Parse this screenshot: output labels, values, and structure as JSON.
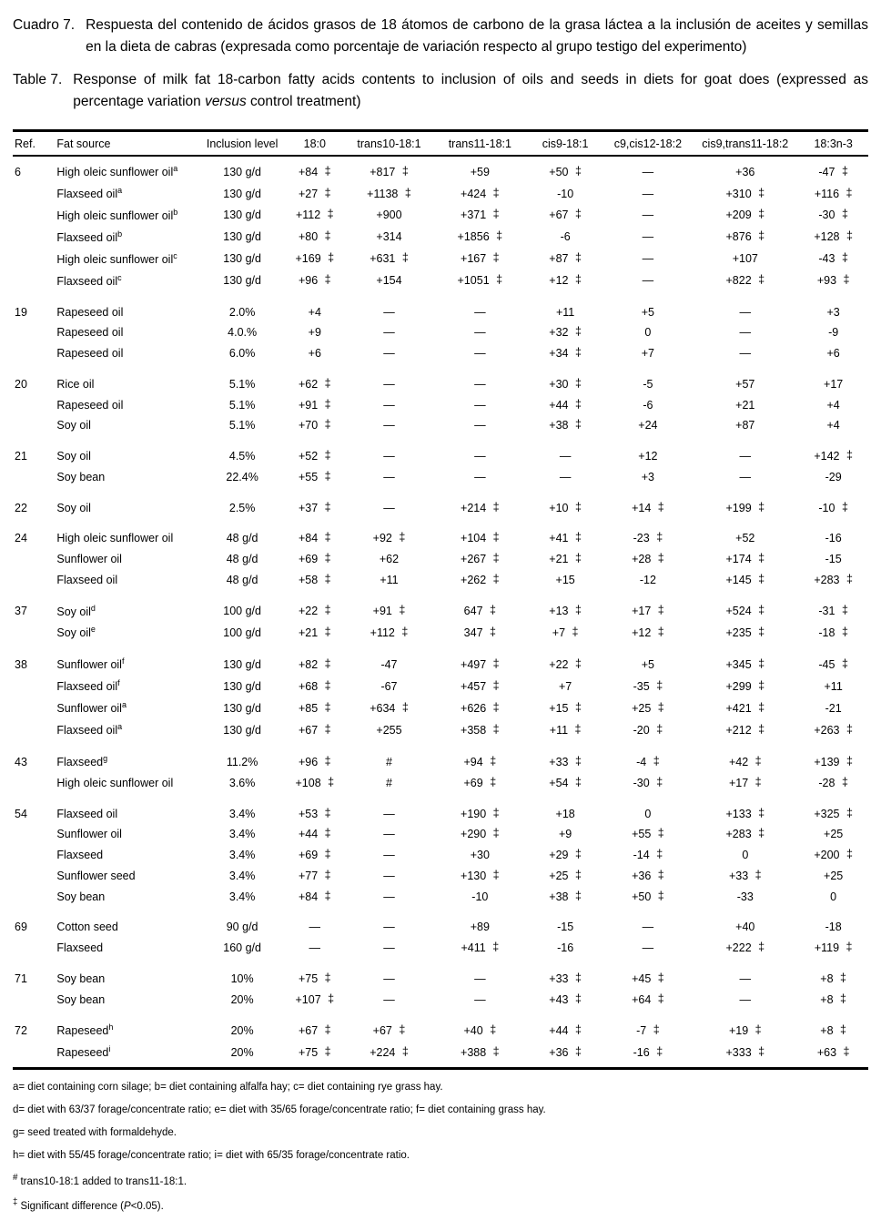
{
  "theme": {
    "page_bg": "#ffffff",
    "text": "#000000",
    "rule": "#000000"
  },
  "caption_es": {
    "label": "Cuadro 7.",
    "text": "Respuesta del contenido de ácidos grasos de 18 átomos de carbono de la grasa láctea a la inclusión de aceites y semillas en la dieta de cabras (expresada como porcentaje de variación respecto al grupo testigo del experimento)"
  },
  "caption_en": {
    "label": "Table 7.",
    "text_before": "Response of milk fat 18-carbon fatty acids contents to inclusion of oils and seeds in diets for goat does (expressed as percentage variation ",
    "italic_word": "versus",
    "text_after": " control treatment)"
  },
  "table": {
    "columns": [
      "Ref.",
      "Fat source",
      "Inclusion level",
      "18:0",
      "trans10-18:1",
      "trans11-18:1",
      "cis9-18:1",
      "c9,cis12-18:2",
      "cis9,trans11-18:2",
      "18:3n-3"
    ],
    "groups": [
      {
        "ref": "6",
        "rows": [
          {
            "source": "High oleic sunflower oil",
            "sup": "a",
            "level": "130 g/d",
            "values": [
              "+84 ‡",
              "+817 ‡",
              "+59",
              "+50 ‡",
              "—",
              "+36",
              "-47 ‡"
            ]
          },
          {
            "source": "Flaxseed oil",
            "sup": "a",
            "level": "130 g/d",
            "values": [
              "+27 ‡",
              "+1138 ‡",
              "+424 ‡",
              "-10",
              "—",
              "+310 ‡",
              "+116 ‡"
            ]
          },
          {
            "source": "High oleic sunflower oil",
            "sup": "b",
            "level": "130 g/d",
            "values": [
              "+112 ‡",
              "+900",
              "+371 ‡",
              "+67 ‡",
              "—",
              "+209 ‡",
              "-30 ‡"
            ]
          },
          {
            "source": "Flaxseed oil",
            "sup": "b",
            "level": "130 g/d",
            "values": [
              "+80 ‡",
              "+314",
              "+1856 ‡",
              "-6",
              "—",
              "+876 ‡",
              "+128 ‡"
            ]
          },
          {
            "source": "High oleic sunflower oil",
            "sup": "c",
            "level": "130 g/d",
            "values": [
              "+169 ‡",
              "+631 ‡",
              "+167 ‡",
              "+87 ‡",
              "—",
              "+107",
              "-43 ‡"
            ]
          },
          {
            "source": "Flaxseed oil",
            "sup": "c",
            "level": "130 g/d",
            "values": [
              "+96 ‡",
              "+154",
              "+1051 ‡",
              "+12 ‡",
              "—",
              "+822 ‡",
              "+93 ‡"
            ]
          }
        ]
      },
      {
        "ref": "19",
        "rows": [
          {
            "source": "Rapeseed oil",
            "level": "2.0%",
            "values": [
              "+4",
              "—",
              "—",
              "+11",
              "+5",
              "—",
              "+3"
            ]
          },
          {
            "source": "Rapeseed oil",
            "level": "4.0.%",
            "values": [
              "+9",
              "—",
              "—",
              "+32 ‡",
              "0",
              "—",
              "-9"
            ]
          },
          {
            "source": "Rapeseed oil",
            "level": "6.0%",
            "values": [
              "+6",
              "—",
              "—",
              "+34 ‡",
              "+7",
              "—",
              "+6"
            ]
          }
        ]
      },
      {
        "ref": "20",
        "rows": [
          {
            "source": "Rice oil",
            "level": "5.1%",
            "values": [
              "+62 ‡",
              "—",
              "—",
              "+30 ‡",
              "-5",
              "+57",
              "+17"
            ]
          },
          {
            "source": "Rapeseed oil",
            "level": "5.1%",
            "values": [
              "+91 ‡",
              "—",
              "—",
              "+44 ‡",
              "-6",
              "+21",
              "+4"
            ]
          },
          {
            "source": "Soy oil",
            "level": "5.1%",
            "values": [
              "+70 ‡",
              "—",
              "—",
              "+38 ‡",
              "+24",
              "+87",
              "+4"
            ]
          }
        ]
      },
      {
        "ref": "21",
        "rows": [
          {
            "source": "Soy oil",
            "level": "4.5%",
            "values": [
              "+52 ‡",
              "—",
              "—",
              "—",
              "+12",
              "—",
              "+142 ‡"
            ]
          },
          {
            "source": "Soy bean",
            "level": "22.4%",
            "values": [
              "+55 ‡",
              "—",
              "—",
              "—",
              "+3",
              "—",
              "-29"
            ]
          }
        ]
      },
      {
        "ref": "22",
        "rows": [
          {
            "source": "Soy oil",
            "level": "2.5%",
            "values": [
              "+37 ‡",
              "—",
              "+214 ‡",
              "+10 ‡",
              "+14 ‡",
              "+199 ‡",
              "-10 ‡"
            ]
          }
        ]
      },
      {
        "ref": "24",
        "rows": [
          {
            "source": "High oleic sunflower oil",
            "level": "48 g/d",
            "values": [
              "+84 ‡",
              "+92 ‡",
              "+104 ‡",
              "+41 ‡",
              "-23 ‡",
              "+52",
              "-16"
            ]
          },
          {
            "source": "Sunflower oil",
            "level": "48 g/d",
            "values": [
              "+69 ‡",
              "+62",
              "+267 ‡",
              "+21 ‡",
              "+28 ‡",
              "+174 ‡",
              "-15"
            ]
          },
          {
            "source": "Flaxseed oil",
            "level": "48 g/d",
            "values": [
              "+58 ‡",
              "+11",
              "+262 ‡",
              "+15",
              "-12",
              "+145 ‡",
              "+283 ‡"
            ]
          }
        ]
      },
      {
        "ref": "37",
        "rows": [
          {
            "source": "Soy oil",
            "sup": "d",
            "level": "100 g/d",
            "values": [
              "+22 ‡",
              "+91 ‡",
              "647 ‡",
              "+13 ‡",
              "+17 ‡",
              "+524 ‡",
              "-31 ‡"
            ]
          },
          {
            "source": "Soy oil",
            "sup": "e",
            "level": "100 g/d",
            "values": [
              "+21 ‡",
              "+112 ‡",
              "347 ‡",
              "+7 ‡",
              "+12 ‡",
              "+235 ‡",
              "-18 ‡"
            ]
          }
        ]
      },
      {
        "ref": "38",
        "rows": [
          {
            "source": "Sunflower oil",
            "sup": "f",
            "level": "130 g/d",
            "values": [
              "+82 ‡",
              "-47",
              "+497 ‡",
              "+22 ‡",
              "+5",
              "+345 ‡",
              "-45 ‡"
            ]
          },
          {
            "source": "Flaxseed oil",
            "sup": "f",
            "level": "130 g/d",
            "values": [
              "+68 ‡",
              "-67",
              "+457 ‡",
              "+7",
              "-35 ‡",
              "+299 ‡",
              "+11"
            ]
          },
          {
            "source": "Sunflower oil",
            "sup": "a",
            "level": "130 g/d",
            "values": [
              "+85 ‡",
              "+634 ‡",
              "+626 ‡",
              "+15 ‡",
              "+25 ‡",
              "+421 ‡",
              "-21"
            ]
          },
          {
            "source": "Flaxseed oil",
            "sup": "a",
            "level": "130 g/d",
            "values": [
              "+67 ‡",
              "+255",
              "+358 ‡",
              "+11 ‡",
              "-20 ‡",
              "+212 ‡",
              "+263 ‡"
            ]
          }
        ]
      },
      {
        "ref": "43",
        "rows": [
          {
            "source": "Flaxseed",
            "sup": "g",
            "level": "11.2%",
            "values": [
              "+96 ‡",
              "#",
              "+94 ‡",
              "+33 ‡",
              "-4 ‡",
              "+42 ‡",
              "+139 ‡"
            ]
          },
          {
            "source": "High oleic sunflower oil",
            "level": "3.6%",
            "values": [
              "+108 ‡",
              "#",
              "+69 ‡",
              "+54 ‡",
              "-30 ‡",
              "+17 ‡",
              "-28 ‡"
            ]
          }
        ]
      },
      {
        "ref": "54",
        "rows": [
          {
            "source": "Flaxseed oil",
            "level": "3.4%",
            "values": [
              "+53 ‡",
              "—",
              "+190 ‡",
              "+18",
              "0",
              "+133 ‡",
              "+325 ‡"
            ]
          },
          {
            "source": "Sunflower oil",
            "level": "3.4%",
            "values": [
              "+44 ‡",
              "—",
              "+290 ‡",
              "+9",
              "+55 ‡",
              "+283 ‡",
              "+25"
            ]
          },
          {
            "source": "Flaxseed",
            "level": "3.4%",
            "values": [
              "+69 ‡",
              "—",
              "+30",
              "+29 ‡",
              "-14 ‡",
              "0",
              "+200 ‡"
            ]
          },
          {
            "source": "Sunflower seed",
            "level": "3.4%",
            "values": [
              "+77 ‡",
              "—",
              "+130 ‡",
              "+25 ‡",
              "+36 ‡",
              "+33 ‡",
              "+25"
            ]
          },
          {
            "source": "Soy bean",
            "level": "3.4%",
            "values": [
              "+84 ‡",
              "—",
              "-10",
              "+38 ‡",
              "+50 ‡",
              "-33",
              "0"
            ]
          }
        ]
      },
      {
        "ref": "69",
        "rows": [
          {
            "source": "Cotton seed",
            "level": "90 g/d",
            "values": [
              "—",
              "—",
              "+89",
              "-15",
              "—",
              "+40",
              "-18"
            ]
          },
          {
            "source": "Flaxseed",
            "level": "160 g/d",
            "values": [
              "—",
              "—",
              "+411 ‡",
              "-16",
              "—",
              "+222 ‡",
              "+119 ‡"
            ]
          }
        ]
      },
      {
        "ref": "71",
        "rows": [
          {
            "source": "Soy bean",
            "level": "10%",
            "values": [
              "+75 ‡",
              "—",
              "—",
              "+33 ‡",
              "+45 ‡",
              "—",
              "+8 ‡"
            ]
          },
          {
            "source": "Soy bean",
            "level": "20%",
            "values": [
              "+107 ‡",
              "—",
              "—",
              "+43 ‡",
              "+64 ‡",
              "—",
              "+8 ‡"
            ]
          }
        ]
      },
      {
        "ref": "72",
        "rows": [
          {
            "source": "Rapeseed",
            "sup": "h",
            "level": "20%",
            "values": [
              "+67 ‡",
              "+67 ‡",
              "+40 ‡",
              "+44 ‡",
              "-7 ‡",
              "+19 ‡",
              "+8 ‡"
            ]
          },
          {
            "source": "Rapeseed",
            "sup": "i",
            "level": "20%",
            "values": [
              "+75 ‡",
              "+224 ‡",
              "+388 ‡",
              "+36 ‡",
              "-16 ‡",
              "+333 ‡",
              "+63 ‡"
            ]
          }
        ]
      }
    ]
  },
  "footnotes": [
    {
      "symbol": "",
      "segments": [
        {
          "text": "a= diet containing corn silage; b= diet containing alfalfa hay; c= diet containing rye grass hay."
        }
      ]
    },
    {
      "symbol": "",
      "segments": [
        {
          "text": "d= diet with 63/37 forage/concentrate ratio; e= diet with 35/65 forage/concentrate ratio; f= diet containing grass hay."
        }
      ]
    },
    {
      "symbol": "",
      "segments": [
        {
          "text": "g= seed treated with formaldehyde."
        }
      ]
    },
    {
      "symbol": "",
      "segments": [
        {
          "text": "h= diet with 55/45 forage/concentrate ratio; i= diet with 65/35 forage/concentrate ratio."
        }
      ]
    },
    {
      "symbol": "#",
      "segments": [
        {
          "text": "trans10-18:1 added to trans11-18:1."
        }
      ]
    },
    {
      "symbol": "‡",
      "segments": [
        {
          "text": "Significant difference ("
        },
        {
          "text": "P",
          "italic": true
        },
        {
          "text": "<0.05)."
        }
      ]
    }
  ]
}
